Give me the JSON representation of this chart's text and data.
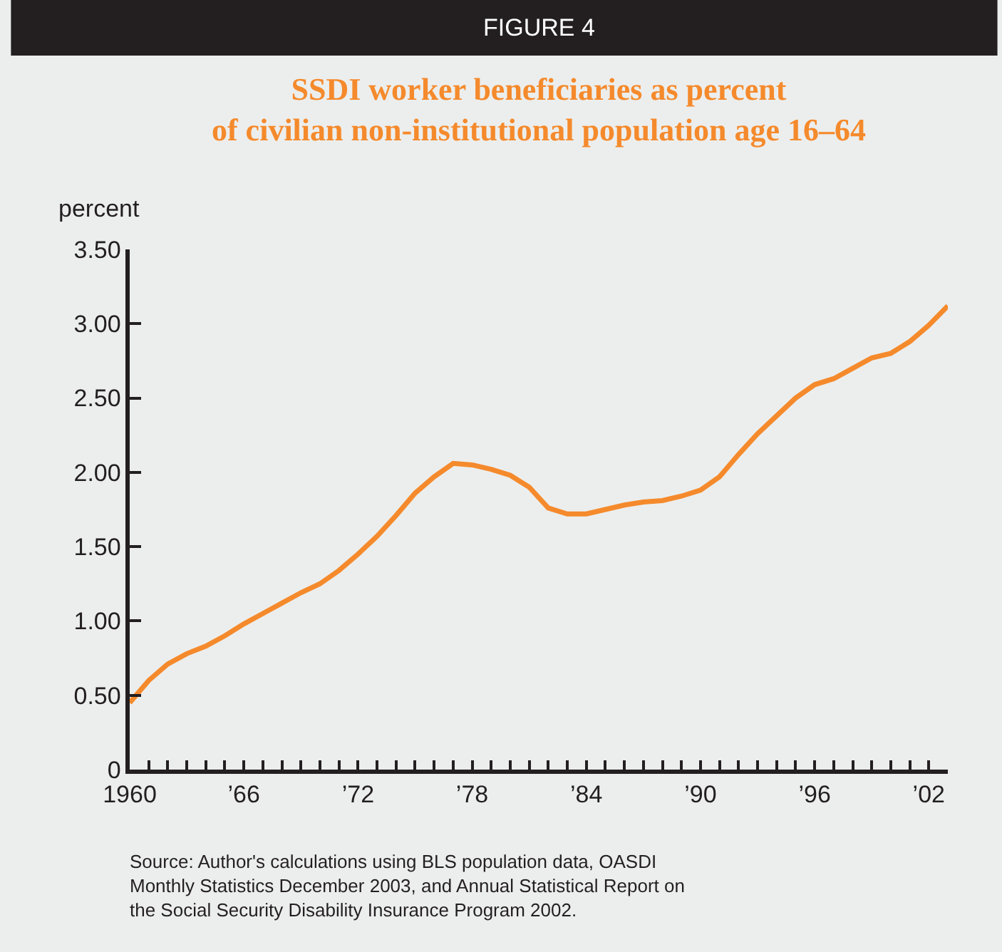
{
  "chart_data": {
    "type": "line",
    "title": "SSDI worker beneficiaries as percent of civilian non-institutional population age 16–64",
    "ylabel": "percent",
    "annotations": [
      "FIGURE 4",
      "Source: Author's calculations using BLS population data, OASDI Monthly Statistics December 2003, and Annual Statistical Report on the Social Security Disability Insurance Program 2002."
    ],
    "x": [
      1960,
      1961,
      1962,
      1963,
      1964,
      1965,
      1966,
      1967,
      1968,
      1969,
      1970,
      1971,
      1972,
      1973,
      1974,
      1975,
      1976,
      1977,
      1978,
      1979,
      1980,
      1981,
      1982,
      1983,
      1984,
      1985,
      1986,
      1987,
      1988,
      1989,
      1990,
      1991,
      1992,
      1993,
      1994,
      1995,
      1996,
      1997,
      1998,
      1999,
      2000,
      2001,
      2002,
      2003
    ],
    "series": [
      {
        "color": "#f58a2c",
        "values": [
          0.45,
          0.6,
          0.71,
          0.78,
          0.83,
          0.9,
          0.98,
          1.05,
          1.12,
          1.19,
          1.25,
          1.34,
          1.45,
          1.57,
          1.71,
          1.86,
          1.97,
          2.06,
          2.05,
          2.02,
          1.98,
          1.9,
          1.76,
          1.72,
          1.72,
          1.75,
          1.78,
          1.8,
          1.81,
          1.84,
          1.88,
          1.97,
          2.12,
          2.26,
          2.38,
          2.5,
          2.59,
          2.63,
          2.7,
          2.77,
          2.8,
          2.88,
          2.99,
          3.12
        ]
      }
    ],
    "xlim": [
      1960,
      2003
    ],
    "xticks": [
      {
        "value": 1960,
        "label": "1960"
      },
      {
        "value": 1961,
        "label": null
      },
      {
        "value": 1962,
        "label": null
      },
      {
        "value": 1963,
        "label": null
      },
      {
        "value": 1964,
        "label": null
      },
      {
        "value": 1965,
        "label": null
      },
      {
        "value": 1966,
        "label": "’66"
      },
      {
        "value": 1967,
        "label": null
      },
      {
        "value": 1968,
        "label": null
      },
      {
        "value": 1969,
        "label": null
      },
      {
        "value": 1970,
        "label": null
      },
      {
        "value": 1971,
        "label": null
      },
      {
        "value": 1972,
        "label": "’72"
      },
      {
        "value": 1973,
        "label": null
      },
      {
        "value": 1974,
        "label": null
      },
      {
        "value": 1975,
        "label": null
      },
      {
        "value": 1976,
        "label": null
      },
      {
        "value": 1977,
        "label": null
      },
      {
        "value": 1978,
        "label": "’78"
      },
      {
        "value": 1979,
        "label": null
      },
      {
        "value": 1980,
        "label": null
      },
      {
        "value": 1981,
        "label": null
      },
      {
        "value": 1982,
        "label": null
      },
      {
        "value": 1983,
        "label": null
      },
      {
        "value": 1984,
        "label": "’84"
      },
      {
        "value": 1985,
        "label": null
      },
      {
        "value": 1986,
        "label": null
      },
      {
        "value": 1987,
        "label": null
      },
      {
        "value": 1988,
        "label": null
      },
      {
        "value": 1989,
        "label": null
      },
      {
        "value": 1990,
        "label": "’90"
      },
      {
        "value": 1991,
        "label": null
      },
      {
        "value": 1992,
        "label": null
      },
      {
        "value": 1993,
        "label": null
      },
      {
        "value": 1994,
        "label": null
      },
      {
        "value": 1995,
        "label": null
      },
      {
        "value": 1996,
        "label": "’96"
      },
      {
        "value": 1997,
        "label": null
      },
      {
        "value": 1998,
        "label": null
      },
      {
        "value": 1999,
        "label": null
      },
      {
        "value": 2000,
        "label": null
      },
      {
        "value": 2001,
        "label": null
      },
      {
        "value": 2002,
        "label": "’02"
      }
    ],
    "ylim": [
      0,
      3.5
    ],
    "yticks": [
      0,
      {
        "value": 0.5,
        "label": "0.50"
      },
      {
        "value": 1,
        "label": "1.00"
      },
      {
        "value": 1.5,
        "label": "1.50"
      },
      {
        "value": 2,
        "label": "2.00"
      },
      {
        "value": 2.5,
        "label": "2.50"
      },
      {
        "value": 3,
        "label": "3.00"
      },
      {
        "value": 3.5,
        "label": "3.50"
      }
    ],
    "marker": "none",
    "line_style": "solid"
  }
}
